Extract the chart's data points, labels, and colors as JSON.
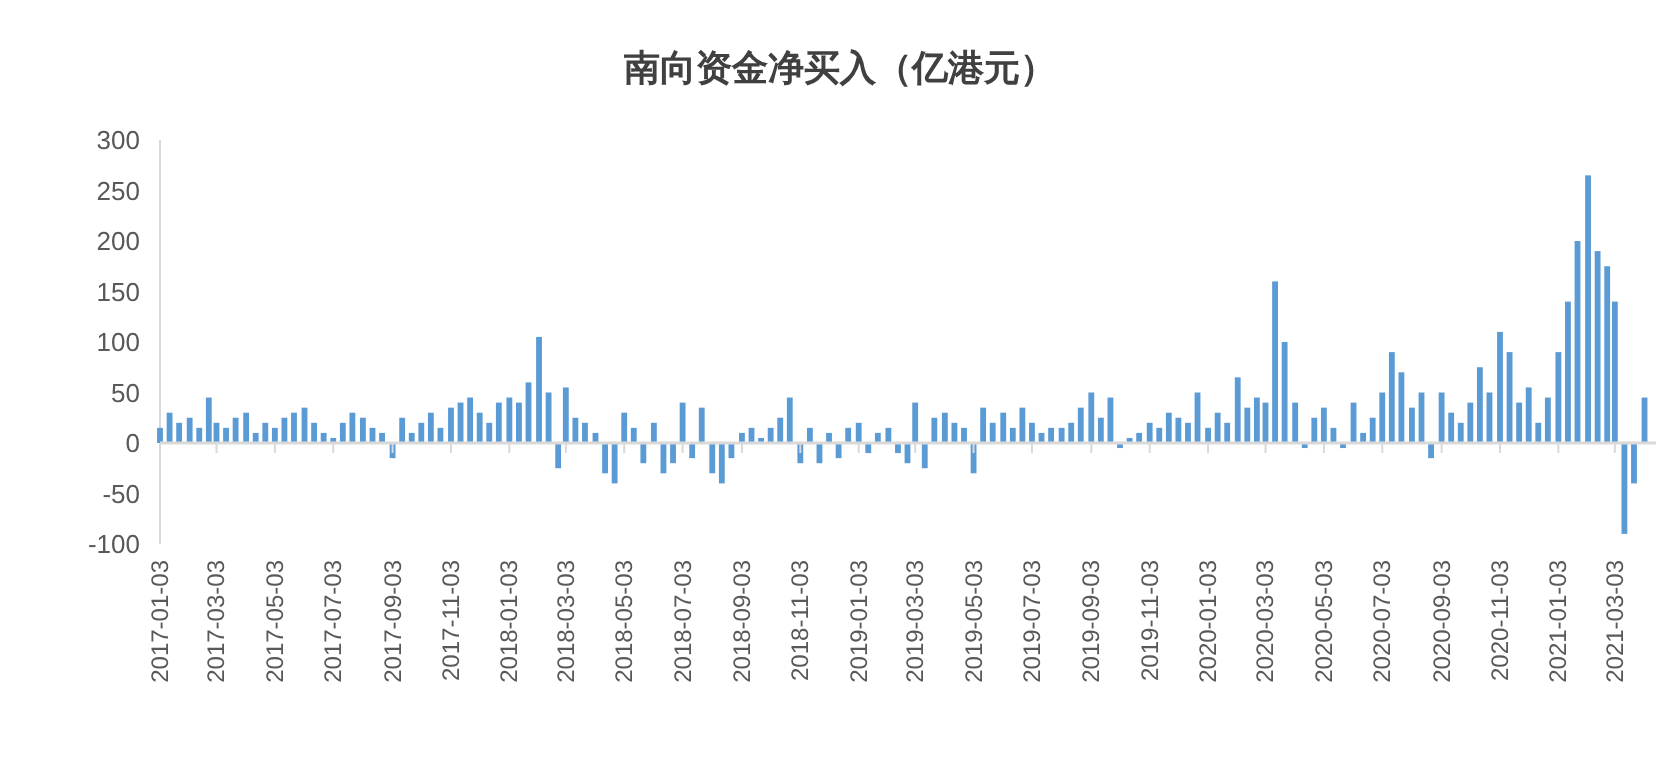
{
  "chart_data": {
    "type": "bar",
    "title": "南向资金净买入（亿港元）",
    "color": "#5b9bd5",
    "x": [
      "2017-01-03",
      "2017-01-13",
      "2017-01-23",
      "2017-02-03",
      "2017-02-13",
      "2017-02-23",
      "2017-03-03",
      "2017-03-13",
      "2017-03-23",
      "2017-04-03",
      "2017-04-13",
      "2017-04-23",
      "2017-05-03",
      "2017-05-13",
      "2017-05-23",
      "2017-06-03",
      "2017-06-13",
      "2017-06-23",
      "2017-07-03",
      "2017-07-13",
      "2017-07-23",
      "2017-08-03",
      "2017-08-13",
      "2017-08-23",
      "2017-09-03",
      "2017-09-13",
      "2017-09-23",
      "2017-10-03",
      "2017-10-13",
      "2017-10-23",
      "2017-11-03",
      "2017-11-13",
      "2017-11-23",
      "2017-12-03",
      "2017-12-13",
      "2017-12-23",
      "2018-01-03",
      "2018-01-13",
      "2018-01-23",
      "2018-02-03",
      "2018-02-13",
      "2018-02-23",
      "2018-03-03",
      "2018-03-13",
      "2018-03-23",
      "2018-04-03",
      "2018-04-13",
      "2018-04-23",
      "2018-05-03",
      "2018-05-13",
      "2018-05-23",
      "2018-06-03",
      "2018-06-13",
      "2018-06-23",
      "2018-07-03",
      "2018-07-13",
      "2018-07-23",
      "2018-08-03",
      "2018-08-13",
      "2018-08-23",
      "2018-09-03",
      "2018-09-13",
      "2018-09-23",
      "2018-10-03",
      "2018-10-13",
      "2018-10-23",
      "2018-11-03",
      "2018-11-13",
      "2018-11-23",
      "2018-12-03",
      "2018-12-13",
      "2018-12-23",
      "2019-01-03",
      "2019-01-13",
      "2019-01-23",
      "2019-02-03",
      "2019-02-13",
      "2019-02-23",
      "2019-03-03",
      "2019-03-13",
      "2019-03-23",
      "2019-04-03",
      "2019-04-13",
      "2019-04-23",
      "2019-05-03",
      "2019-05-13",
      "2019-05-23",
      "2019-06-03",
      "2019-06-13",
      "2019-06-23",
      "2019-07-03",
      "2019-07-13",
      "2019-07-23",
      "2019-08-03",
      "2019-08-13",
      "2019-08-23",
      "2019-09-03",
      "2019-09-13",
      "2019-09-23",
      "2019-10-03",
      "2019-10-13",
      "2019-10-23",
      "2019-11-03",
      "2019-11-13",
      "2019-11-23",
      "2019-12-03",
      "2019-12-13",
      "2019-12-23",
      "2020-01-03",
      "2020-01-13",
      "2020-01-23",
      "2020-02-03",
      "2020-02-13",
      "2020-02-23",
      "2020-03-03",
      "2020-03-13",
      "2020-03-23",
      "2020-04-03",
      "2020-04-13",
      "2020-04-23",
      "2020-05-03",
      "2020-05-13",
      "2020-05-23",
      "2020-06-03",
      "2020-06-13",
      "2020-06-23",
      "2020-07-03",
      "2020-07-13",
      "2020-07-23",
      "2020-08-03",
      "2020-08-13",
      "2020-08-23",
      "2020-09-03",
      "2020-09-13",
      "2020-09-23",
      "2020-10-03",
      "2020-10-13",
      "2020-10-23",
      "2020-11-03",
      "2020-11-13",
      "2020-11-23",
      "2020-12-03",
      "2020-12-13",
      "2020-12-23",
      "2021-01-03",
      "2021-01-13",
      "2021-01-23",
      "2021-02-03",
      "2021-02-13",
      "2021-02-23",
      "2021-03-03",
      "2021-03-13",
      "2021-03-23",
      "2021-04-03"
    ],
    "values": [
      15,
      30,
      20,
      25,
      15,
      45,
      20,
      15,
      25,
      30,
      10,
      20,
      15,
      25,
      30,
      35,
      20,
      10,
      5,
      20,
      30,
      25,
      15,
      10,
      -15,
      25,
      10,
      20,
      30,
      15,
      35,
      40,
      45,
      30,
      20,
      40,
      45,
      40,
      60,
      105,
      50,
      -25,
      55,
      25,
      20,
      10,
      -30,
      -40,
      30,
      15,
      -20,
      20,
      -30,
      -20,
      40,
      -15,
      35,
      -30,
      -40,
      -15,
      10,
      15,
      5,
      15,
      25,
      45,
      -20,
      15,
      -20,
      10,
      -15,
      15,
      20,
      -10,
      10,
      15,
      -10,
      -20,
      40,
      -25,
      25,
      30,
      20,
      15,
      -30,
      35,
      20,
      30,
      15,
      35,
      20,
      10,
      15,
      15,
      20,
      35,
      50,
      25,
      45,
      -5,
      5,
      10,
      20,
      15,
      30,
      25,
      20,
      50,
      15,
      30,
      20,
      65,
      35,
      45,
      40,
      160,
      100,
      40,
      -5,
      25,
      35,
      15,
      -5,
      40,
      10,
      25,
      50,
      90,
      70,
      35,
      50,
      -15,
      50,
      30,
      20,
      40,
      75,
      50,
      110,
      90,
      40,
      55,
      20,
      45,
      90,
      140,
      200,
      265,
      190,
      175,
      140,
      -90,
      -40,
      45
    ],
    "xlim": [
      "2017-01-03",
      "2021-04-15"
    ],
    "xticks": [
      "2017-01-03",
      "2017-03-03",
      "2017-05-03",
      "2017-07-03",
      "2017-09-03",
      "2017-11-03",
      "2018-01-03",
      "2018-03-03",
      "2018-05-03",
      "2018-07-03",
      "2018-09-03",
      "2018-11-03",
      "2019-01-03",
      "2019-03-03",
      "2019-05-03",
      "2019-07-03",
      "2019-09-03",
      "2019-11-03",
      "2020-01-03",
      "2020-03-03",
      "2020-05-03",
      "2020-07-03",
      "2020-09-03",
      "2020-11-03",
      "2021-01-03",
      "2021-03-03"
    ],
    "ylim": [
      -100,
      300
    ],
    "yticks": [
      -100,
      -50,
      0,
      50,
      100,
      150,
      200,
      250,
      300
    ]
  }
}
